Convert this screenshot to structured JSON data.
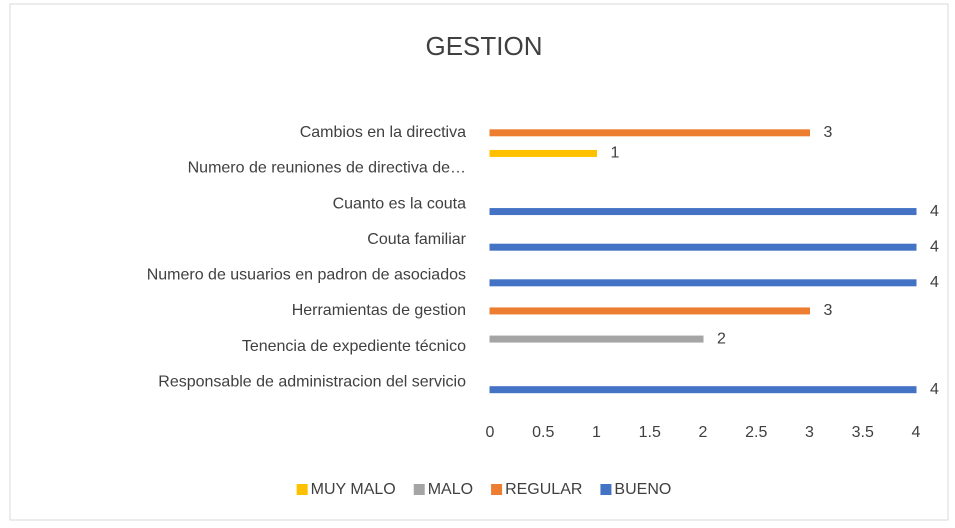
{
  "chart_data": {
    "type": "bar",
    "orientation": "horizontal",
    "title": "GESTION",
    "categories": [
      "Cambios en la directiva",
      "Numero de reuniones de directiva de…",
      "Cuanto es la couta",
      "Couta familiar",
      "Numero de usuarios en padron de asociados",
      "Herramientas  de gestion",
      "Tenencia de expediente técnico",
      "Responsable de administracion del servicio"
    ],
    "series": [
      {
        "name": "MUY MALO",
        "color": "#ffc000",
        "values": [
          null,
          1,
          null,
          null,
          null,
          null,
          null,
          null
        ]
      },
      {
        "name": "MALO",
        "color": "#a5a5a5",
        "values": [
          null,
          null,
          null,
          null,
          null,
          null,
          2,
          null
        ]
      },
      {
        "name": "REGULAR",
        "color": "#ed7d31",
        "values": [
          3,
          null,
          null,
          null,
          null,
          3,
          null,
          null
        ]
      },
      {
        "name": "BUENO",
        "color": "#4472c4",
        "values": [
          null,
          null,
          4,
          4,
          4,
          null,
          null,
          4
        ]
      }
    ],
    "xlim": [
      0,
      4
    ],
    "xticks": [
      0,
      0.5,
      1,
      1.5,
      2,
      2.5,
      3,
      3.5,
      4
    ],
    "grid": false,
    "legend": "bottom"
  }
}
